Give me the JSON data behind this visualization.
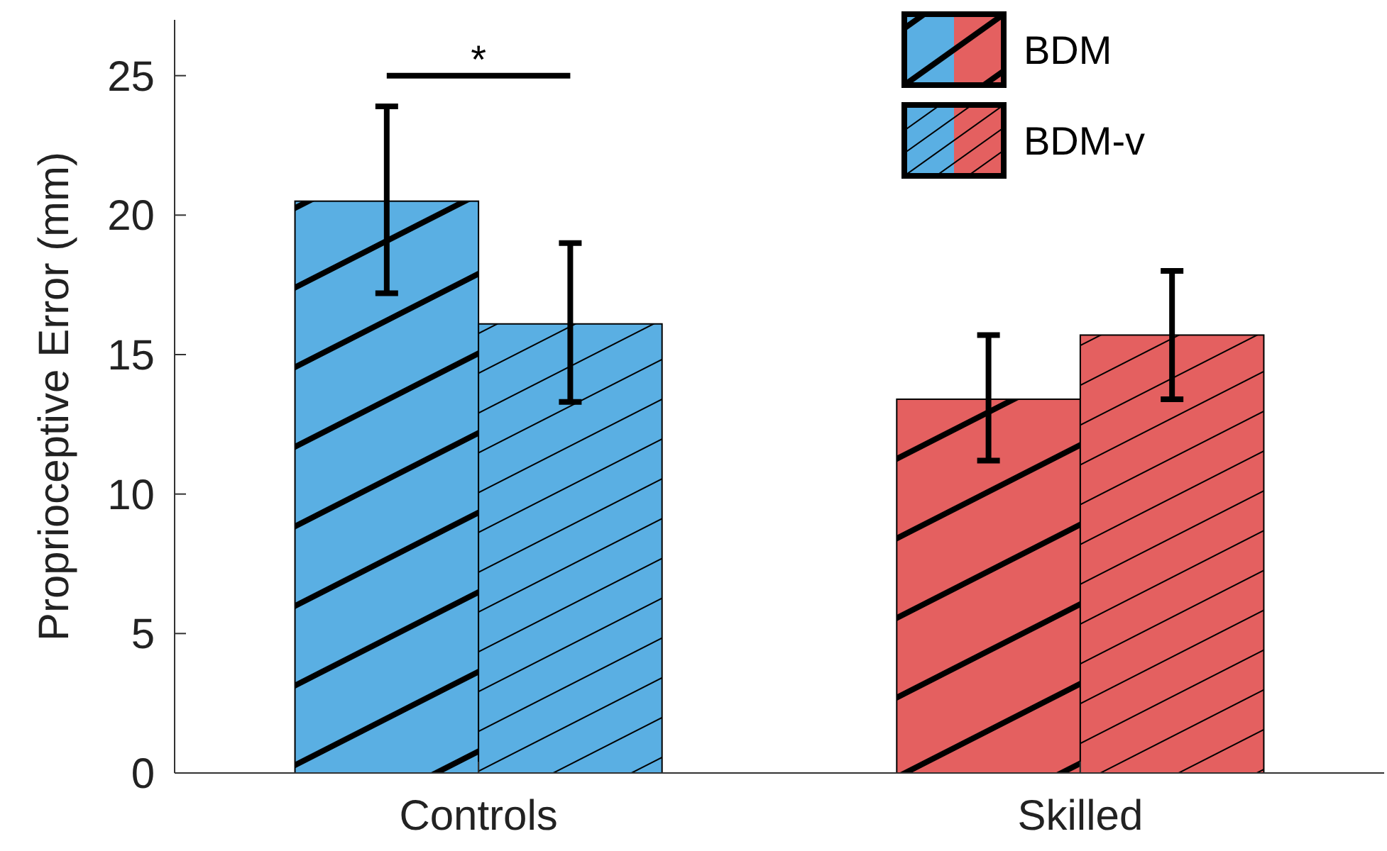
{
  "chart_data": {
    "type": "bar",
    "ylabel": "Proprioceptive Error (mm)",
    "categories": [
      "Controls",
      "Skilled"
    ],
    "series": [
      {
        "name": "BDM",
        "colors": [
          "#5aafe3",
          "#e46060"
        ],
        "values": [
          20.5,
          13.4
        ],
        "errors": [
          [
            17.2,
            23.9
          ],
          [
            11.2,
            15.7
          ]
        ]
      },
      {
        "name": "BDM-v",
        "colors": [
          "#5aafe3",
          "#e46060"
        ],
        "values": [
          16.1,
          15.7
        ],
        "errors": [
          [
            13.3,
            19.0
          ],
          [
            13.4,
            18.0
          ]
        ]
      }
    ],
    "ylim": [
      0,
      27
    ],
    "yticks": [
      0,
      5,
      10,
      15,
      20,
      25
    ],
    "legend": "top right",
    "annotations": [
      "*"
    ]
  }
}
